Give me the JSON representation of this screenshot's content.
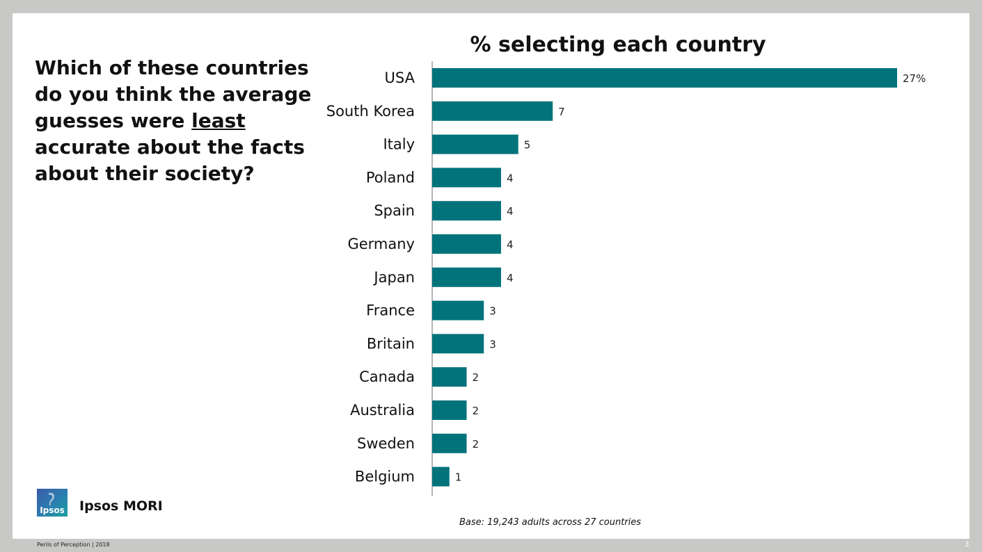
{
  "question": {
    "before": "Which of these countries do you think the average guesses were ",
    "emphasis": "least",
    "after": " accurate about the facts about their society?"
  },
  "chart_data": {
    "type": "bar",
    "orientation": "horizontal",
    "title": "% selecting each country",
    "categories": [
      "USA",
      "South Korea",
      "Italy",
      "Poland",
      "Spain",
      "Germany",
      "Japan",
      "France",
      "Britain",
      "Canada",
      "Australia",
      "Sweden",
      "Belgium"
    ],
    "values": [
      27,
      7,
      5,
      4,
      4,
      4,
      4,
      3,
      3,
      2,
      2,
      2,
      1
    ],
    "data_labels": [
      "27%",
      "7",
      "5",
      "4",
      "4",
      "4",
      "4",
      "3",
      "3",
      "2",
      "2",
      "2",
      "1"
    ],
    "xlim": [
      0,
      27
    ],
    "grid": false,
    "bar_color": "#02737a"
  },
  "brand": {
    "logo_text": "Ipsos",
    "name": "Ipsos MORI"
  },
  "base_note": "Base: 19,243 adults across 27 countries",
  "footer": "Perils of Perception | 2018",
  "page_number": "3",
  "colors": {
    "background": "#c8c8c6",
    "slide": "#ffffff",
    "bar": "#02737a",
    "logo_teal": "#1aa0a0",
    "logo_blue": "#3b5aa8"
  }
}
